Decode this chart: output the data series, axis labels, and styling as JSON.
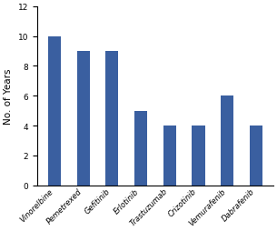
{
  "categories": [
    "Vinorelbine",
    "Pemetrexed",
    "Gefitinib",
    "Erlotinib",
    "Trastuzumab",
    "Crizotinib",
    "Vemurafenib",
    "Dabrafenib"
  ],
  "values": [
    10,
    9,
    9,
    5,
    4,
    4,
    6,
    4
  ],
  "bar_color": "#3a5fa0",
  "ylabel": "No. of Years",
  "ylim": [
    0,
    12
  ],
  "yticks": [
    0,
    2,
    4,
    6,
    8,
    10,
    12
  ],
  "background_color": "#ffffff",
  "bar_width": 0.45,
  "xlabel_fontsize": 6.0,
  "ylabel_fontsize": 7.5,
  "ytick_fontsize": 6.5
}
